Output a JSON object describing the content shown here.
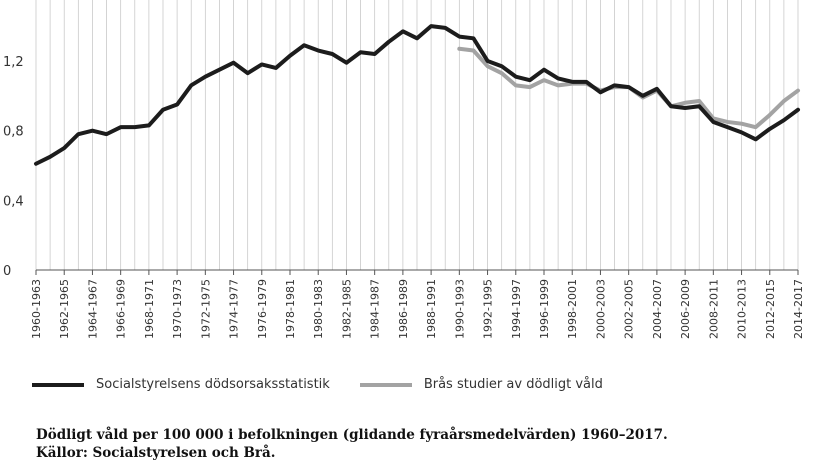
{
  "chart_data": {
    "type": "line",
    "x": [
      "1960-1963",
      "1961-1964",
      "1962-1965",
      "1963-1966",
      "1964-1967",
      "1965-1968",
      "1966-1969",
      "1967-1970",
      "1968-1971",
      "1969-1972",
      "1970-1973",
      "1971-1974",
      "1972-1975",
      "1973-1976",
      "1974-1977",
      "1975-1978",
      "1976-1979",
      "1977-1980",
      "1978-1981",
      "1979-1982",
      "1980-1983",
      "1981-1984",
      "1982-1985",
      "1983-1986",
      "1984-1987",
      "1985-1988",
      "1986-1989",
      "1987-1990",
      "1988-1991",
      "1989-1992",
      "1990-1993",
      "1991-1994",
      "1992-1995",
      "1993-1996",
      "1994-1997",
      "1995-1998",
      "1996-1999",
      "1997-2000",
      "1998-2001",
      "1999-2002",
      "2000-2003",
      "2001-2004",
      "2002-2005",
      "2003-2006",
      "2004-2007",
      "2005-2008",
      "2006-2009",
      "2007-2010",
      "2008-2011",
      "2009-2012",
      "2010-2013",
      "2011-2014",
      "2012-2015",
      "2013-2016",
      "2014-2017"
    ],
    "xtick_labels": [
      "1960-1963",
      "1962-1965",
      "1964-1967",
      "1966-1969",
      "1968-1971",
      "1970-1973",
      "1972-1975",
      "1974-1977",
      "1976-1979",
      "1978-1981",
      "1980-1983",
      "1982-1985",
      "1984-1987",
      "1986-1989",
      "1988-1991",
      "1990-1993",
      "1992-1995",
      "1994-1997",
      "1996-1999",
      "1998-2001",
      "2000-2003",
      "2002-2005",
      "2004-2007",
      "2006-2009",
      "2008-2011",
      "2010-2013",
      "2012-2015",
      "2014-2017"
    ],
    "yticks": [
      0,
      0.4,
      0.8,
      1.2
    ],
    "ytick_labels": [
      "0",
      "0,4",
      "0,8",
      "1,2"
    ],
    "ylim": [
      0,
      1.55
    ],
    "grid": "vertical",
    "legend_position": "bottom",
    "series": [
      {
        "name": "Socialstyrelsens dödsorsaksstatistik",
        "color": "#1c1c1c",
        "values": [
          0.61,
          0.65,
          0.7,
          0.78,
          0.8,
          0.78,
          0.82,
          0.82,
          0.83,
          0.92,
          0.95,
          1.06,
          1.11,
          1.15,
          1.19,
          1.13,
          1.18,
          1.16,
          1.23,
          1.29,
          1.26,
          1.24,
          1.19,
          1.25,
          1.24,
          1.31,
          1.37,
          1.33,
          1.4,
          1.39,
          1.34,
          1.33,
          1.2,
          1.17,
          1.11,
          1.09,
          1.15,
          1.1,
          1.08,
          1.08,
          1.02,
          1.06,
          1.05,
          1.0,
          1.04,
          0.94,
          0.93,
          0.94,
          0.85,
          0.82,
          0.79,
          0.75,
          0.81,
          0.86,
          0.92
        ]
      },
      {
        "name": "Brås studier av dödligt våld",
        "color": "#a3a3a3",
        "values": [
          null,
          null,
          null,
          null,
          null,
          null,
          null,
          null,
          null,
          null,
          null,
          null,
          null,
          null,
          null,
          null,
          null,
          null,
          null,
          null,
          null,
          null,
          null,
          null,
          null,
          null,
          null,
          null,
          null,
          null,
          1.27,
          1.26,
          1.17,
          1.13,
          1.06,
          1.05,
          1.09,
          1.06,
          1.07,
          1.07,
          1.03,
          1.05,
          1.05,
          0.99,
          1.03,
          0.94,
          0.96,
          0.97,
          0.87,
          0.85,
          0.84,
          0.82,
          0.89,
          0.97,
          1.03
        ]
      }
    ]
  },
  "caption": {
    "line1": "Dödligt våld per 100 000 i befolkningen (glidande fyraårsmedelvärden) 1960–2017.",
    "line2": "Källor: Socialstyrelsen och Brå."
  }
}
